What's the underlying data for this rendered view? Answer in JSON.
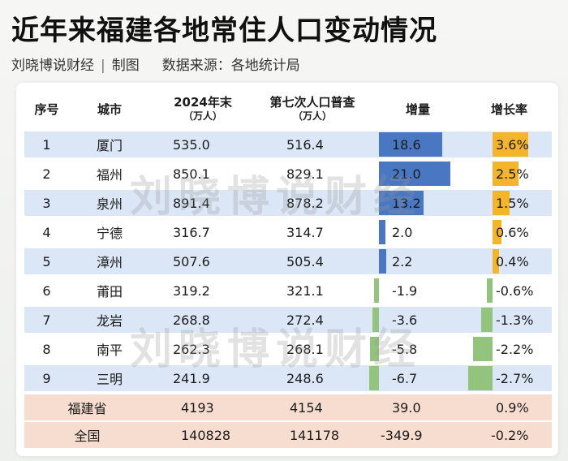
{
  "title": "近年来福建各地常住人口变动情况",
  "subtitle": {
    "author": "刘晓博说财经",
    "separator": "|",
    "chart_label": "制图",
    "source": "数据来源：各地统计局"
  },
  "watermark": "刘晓博说财经",
  "headers": {
    "idx": "序号",
    "city": "城市",
    "v24": "2024年末",
    "v24_unit": "（万人）",
    "v7": "第七次人口普查",
    "v7_unit": "（万人）",
    "inc": "增量",
    "rate": "增长率"
  },
  "rows": [
    {
      "idx": "1",
      "city": "厦门",
      "v24": "535.0",
      "v7": "516.4",
      "inc": "18.6",
      "rate": "3.6%",
      "inc_num": 18.6,
      "rate_num": 3.6
    },
    {
      "idx": "2",
      "city": "福州",
      "v24": "850.1",
      "v7": "829.1",
      "inc": "21.0",
      "rate": "2.5%",
      "inc_num": 21.0,
      "rate_num": 2.5
    },
    {
      "idx": "3",
      "city": "泉州",
      "v24": "891.4",
      "v7": "878.2",
      "inc": "13.2",
      "rate": "1.5%",
      "inc_num": 13.2,
      "rate_num": 1.5
    },
    {
      "idx": "4",
      "city": "宁德",
      "v24": "316.7",
      "v7": "314.7",
      "inc": "2.0",
      "rate": "0.6%",
      "inc_num": 2.0,
      "rate_num": 0.6
    },
    {
      "idx": "5",
      "city": "漳州",
      "v24": "507.6",
      "v7": "505.4",
      "inc": "2.2",
      "rate": "0.4%",
      "inc_num": 2.2,
      "rate_num": 0.4
    },
    {
      "idx": "6",
      "city": "莆田",
      "v24": "319.2",
      "v7": "321.1",
      "inc": "-1.9",
      "rate": "-0.6%",
      "inc_num": -1.9,
      "rate_num": -0.6
    },
    {
      "idx": "7",
      "city": "龙岩",
      "v24": "268.8",
      "v7": "272.4",
      "inc": "-3.6",
      "rate": "-1.3%",
      "inc_num": -3.6,
      "rate_num": -1.3
    },
    {
      "idx": "8",
      "city": "南平",
      "v24": "262.3",
      "v7": "268.1",
      "inc": "-5.8",
      "rate": "-2.2%",
      "inc_num": -5.8,
      "rate_num": -2.2
    },
    {
      "idx": "9",
      "city": "三明",
      "v24": "241.9",
      "v7": "248.6",
      "inc": "-6.7",
      "rate": "-2.7%",
      "inc_num": -6.7,
      "rate_num": -2.7
    }
  ],
  "totals": [
    {
      "name": "福建省",
      "v24": "4193",
      "v7": "4154",
      "inc": "39.0",
      "rate": "0.9%"
    },
    {
      "name": "全国",
      "v24": "140828",
      "v7": "141178",
      "inc": "-349.9",
      "rate": "-0.2%"
    }
  ],
  "colors": {
    "inc_positive": "#4a77c2",
    "negative": "#93c47d",
    "rate_positive": "#f5b52a",
    "row_alt": "#dbe7f6",
    "row_total": "#f6ddcf"
  }
}
